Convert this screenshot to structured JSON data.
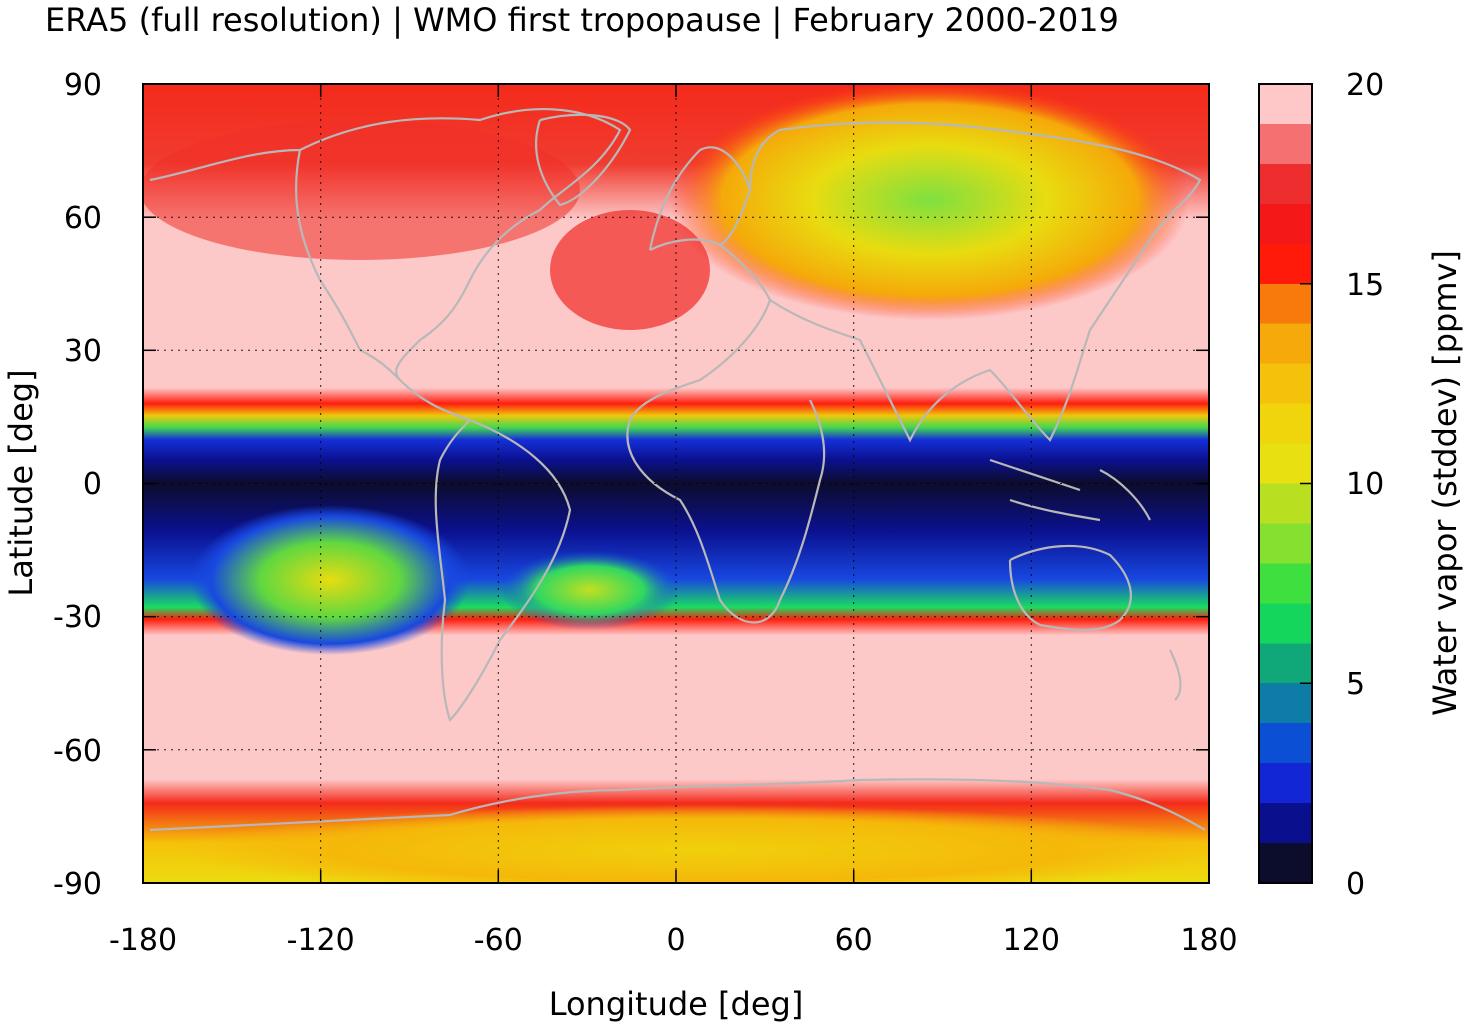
{
  "title": "ERA5 (full resolution) | WMO first tropopause | February 2000-2019",
  "xlabel": "Longitude [deg]",
  "ylabel": "Latitude [deg]",
  "colorbar_label": "Water vapor (stddev) [ppmv]",
  "chart_data": {
    "type": "heatmap",
    "title": "ERA5 (full resolution) | WMO first tropopause | February 2000-2019",
    "xlabel": "Longitude [deg]",
    "ylabel": "Latitude [deg]",
    "xlim": [
      -180,
      180
    ],
    "ylim": [
      -90,
      90
    ],
    "xticks": [
      -180,
      -120,
      -60,
      0,
      60,
      120,
      180
    ],
    "yticks": [
      90,
      60,
      30,
      0,
      -30,
      -60,
      -90
    ],
    "xtick_labels": [
      "-180",
      "-120",
      "-60",
      "0",
      "60",
      "120",
      "180"
    ],
    "ytick_labels": [
      "90",
      "60",
      "30",
      "0",
      "-30",
      "-60",
      "-90"
    ],
    "grid": true,
    "colorbar": {
      "label": "Water vapor (stddev) [ppmv]",
      "range": [
        0,
        20
      ],
      "ticks": [
        0,
        5,
        10,
        15,
        20
      ],
      "tick_labels": [
        "0",
        "5",
        "10",
        "15",
        "20"
      ],
      "colors": [
        "#0c0c2c",
        "#0a0f8e",
        "#1326d6",
        "#0a4fd4",
        "#0d7ca7",
        "#10a878",
        "#14d65c",
        "#3ee040",
        "#86e030",
        "#b8e020",
        "#e8e010",
        "#f0d40c",
        "#f4c20a",
        "#f5a90a",
        "#f77a0a",
        "#ff1a0a",
        "#f51818",
        "#ee2e2e",
        "#f57070",
        "#fec8c8"
      ]
    },
    "overlay": "coastlines"
  }
}
